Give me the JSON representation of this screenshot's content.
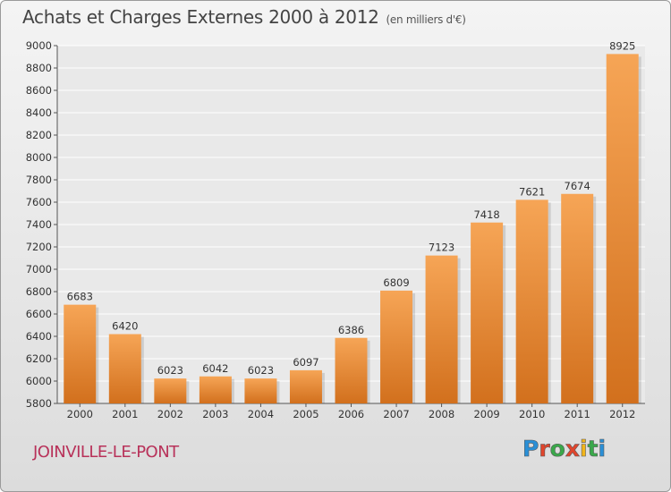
{
  "header": {
    "title": "Achats et Charges Externes 2000 à 2012",
    "subtitle": "(en milliers d'€)"
  },
  "footer": {
    "city": "JOINVILLE-LE-PONT",
    "logo": "Proxiti"
  },
  "colors": {
    "bar_light": "#f6a556",
    "bar_dark": "#d2701d",
    "city": "#b8325a",
    "logo_letters": [
      "#2a8fd6",
      "#e0452c",
      "#3aa84a",
      "#e0452c",
      "#f2b51a",
      "#3aa84a",
      "#2a8fd6"
    ]
  },
  "chart_data": {
    "type": "bar",
    "categories": [
      "2000",
      "2001",
      "2002",
      "2003",
      "2004",
      "2005",
      "2006",
      "2007",
      "2008",
      "2009",
      "2010",
      "2011",
      "2012"
    ],
    "values": [
      6683,
      6420,
      6023,
      6042,
      6023,
      6097,
      6386,
      6809,
      7123,
      7418,
      7621,
      7674,
      8925
    ],
    "ylim": [
      5800,
      9000
    ],
    "yticks": [
      5800,
      6000,
      6200,
      6400,
      6600,
      6800,
      7000,
      7200,
      7400,
      7600,
      7800,
      8000,
      8200,
      8400,
      8600,
      8800,
      9000
    ],
    "grid": true,
    "xlabel": "",
    "ylabel": ""
  }
}
